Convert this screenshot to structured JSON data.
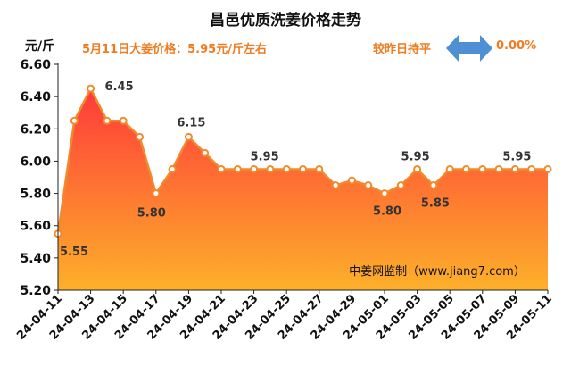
{
  "header": {
    "title": "昌邑优质洗姜价格走势",
    "unit": "元/斤",
    "subtitle": "5月11日大姜价格：5.95元/斤左右",
    "compare_label": "较昨日持平",
    "change_value": "0.00%"
  },
  "colors": {
    "accent": "#f07c22",
    "area_top": "#fe3a3a",
    "area_bottom": "#fdb02a",
    "line": "#f08a2c",
    "arrow": "#4f8fd4"
  },
  "chart_data": {
    "type": "area",
    "title": "昌邑优质洗姜价格走势",
    "ylabel": "元/斤",
    "xlabel": "",
    "ylim": [
      5.2,
      6.6
    ],
    "yticks": [
      "5.20",
      "5.40",
      "5.60",
      "5.80",
      "6.00",
      "6.20",
      "6.40",
      "6.60"
    ],
    "x": [
      "24-04-11",
      "24-04-12",
      "24-04-13",
      "24-04-14",
      "24-04-15",
      "24-04-16",
      "24-04-17",
      "24-04-18",
      "24-04-19",
      "24-04-20",
      "24-04-21",
      "24-04-22",
      "24-04-23",
      "24-04-24",
      "24-04-25",
      "24-04-26",
      "24-04-27",
      "24-04-28",
      "24-04-29",
      "24-04-30",
      "24-05-01",
      "24-05-02",
      "24-05-03",
      "24-05-04",
      "24-05-05",
      "24-05-06",
      "24-05-07",
      "24-05-08",
      "24-05-09",
      "24-05-10",
      "24-05-11"
    ],
    "xtick_labels": [
      "24-04-11",
      "24-04-13",
      "24-04-15",
      "24-04-17",
      "24-04-19",
      "24-04-21",
      "24-04-23",
      "24-04-25",
      "24-04-27",
      "24-04-29",
      "24-05-01",
      "24-05-03",
      "24-05-05",
      "24-05-07",
      "24-05-09",
      "24-05-11"
    ],
    "values": [
      5.55,
      6.25,
      6.45,
      6.25,
      6.25,
      6.15,
      5.8,
      5.95,
      6.15,
      6.05,
      5.95,
      5.95,
      5.95,
      5.95,
      5.95,
      5.95,
      5.95,
      5.85,
      5.88,
      5.85,
      5.8,
      5.85,
      5.95,
      5.85,
      5.95,
      5.95,
      5.95,
      5.95,
      5.95,
      5.95,
      5.95
    ],
    "data_labels": [
      {
        "index": 0,
        "text": "5.55"
      },
      {
        "index": 2,
        "text": "6.45"
      },
      {
        "index": 6,
        "text": "5.80"
      },
      {
        "index": 8,
        "text": "6.15"
      },
      {
        "index": 12,
        "text": "5.95"
      },
      {
        "index": 20,
        "text": "5.80"
      },
      {
        "index": 22,
        "text": "5.95"
      },
      {
        "index": 23,
        "text": "5.85"
      },
      {
        "index": 28,
        "text": "5.95"
      }
    ],
    "watermark": "中姜网监制（www.jiang7.com）",
    "grid": false,
    "legend": "none"
  }
}
